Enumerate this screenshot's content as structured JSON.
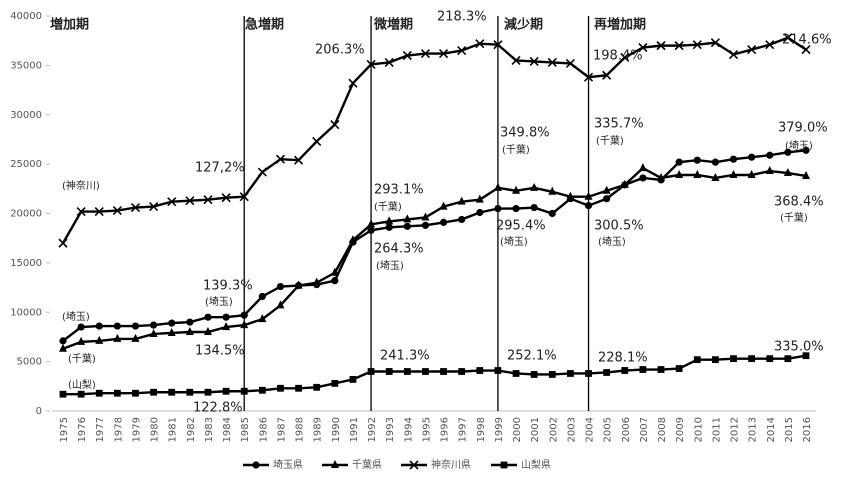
{
  "chart_data": {
    "type": "line",
    "categories": [
      "1975",
      "1976",
      "1977",
      "1978",
      "1979",
      "1980",
      "1981",
      "1982",
      "1983",
      "1984",
      "1985",
      "1986",
      "1987",
      "1988",
      "1989",
      "1990",
      "1991",
      "1992",
      "1993",
      "1994",
      "1995",
      "1996",
      "1997",
      "1998",
      "1999",
      "2000",
      "2001",
      "2002",
      "2003",
      "2004",
      "2005",
      "2006",
      "2007",
      "2008",
      "2009",
      "2010",
      "2011",
      "2012",
      "2013",
      "2014",
      "2015",
      "2016"
    ],
    "ylim": [
      0,
      40000
    ],
    "yticks": [
      0,
      5000,
      10000,
      15000,
      20000,
      25000,
      30000,
      35000,
      40000
    ],
    "grid": false,
    "series": [
      {
        "name": "埼玉県",
        "color": "#000000",
        "marker": "circle",
        "values": [
          7100,
          8500,
          8600,
          8600,
          8600,
          8700,
          8900,
          9000,
          9500,
          9500,
          9700,
          11600,
          12600,
          12700,
          12800,
          13200,
          17100,
          18300,
          18600,
          18700,
          18800,
          19100,
          19400,
          20100,
          20500,
          20500,
          20600,
          20000,
          21500,
          20800,
          21500,
          22900,
          23600,
          23400,
          25200,
          25400,
          25200,
          25500,
          25700,
          25900,
          26200,
          26400
        ]
      },
      {
        "name": "千葉県",
        "color": "#000000",
        "marker": "triangle",
        "values": [
          6300,
          7000,
          7100,
          7300,
          7300,
          7800,
          7900,
          8000,
          8000,
          8500,
          8700,
          9300,
          10700,
          12700,
          13000,
          14000,
          17300,
          18900,
          19200,
          19400,
          19600,
          20700,
          21200,
          21400,
          22600,
          22300,
          22600,
          22200,
          21700,
          21700,
          22300,
          22900,
          24600,
          23600,
          23900,
          23900,
          23600,
          23900,
          23900,
          24300,
          24100,
          23800
        ]
      },
      {
        "name": "神奈川県",
        "color": "#000000",
        "marker": "x",
        "values": [
          17000,
          20200,
          20200,
          20300,
          20600,
          20700,
          21200,
          21300,
          21400,
          21600,
          21700,
          24200,
          25500,
          25400,
          27300,
          29000,
          33200,
          35100,
          35300,
          36000,
          36200,
          36200,
          36500,
          37200,
          37100,
          35500,
          35400,
          35300,
          35200,
          33800,
          34000,
          35800,
          36800,
          37000,
          37000,
          37100,
          37300,
          36100,
          36600,
          37100,
          37800,
          36600
        ]
      },
      {
        "name": "山梨県",
        "color": "#000000",
        "marker": "square",
        "values": [
          1700,
          1700,
          1800,
          1800,
          1800,
          1900,
          1900,
          1900,
          1900,
          2000,
          2000,
          2100,
          2300,
          2300,
          2400,
          2800,
          3200,
          4000,
          4000,
          4000,
          4000,
          4000,
          4000,
          4100,
          4100,
          3800,
          3700,
          3700,
          3800,
          3800,
          3900,
          4100,
          4200,
          4200,
          4300,
          5200,
          5200,
          5300,
          5300,
          5300,
          5300,
          5600
        ]
      }
    ],
    "periods": [
      {
        "label": "増加期",
        "start": "1975"
      },
      {
        "label": "急増期",
        "start": "1985"
      },
      {
        "label": "微増期",
        "start": "1992"
      },
      {
        "label": "減少期",
        "start": "1999"
      },
      {
        "label": "再増加期",
        "start": "2004"
      }
    ],
    "annotations": [
      "127,2%",
      "206.3%",
      "218.3%",
      "198.4%",
      "214.6%",
      "(神奈川)",
      "379.0%",
      "(埼玉)",
      "335.7%",
      "(千葉)",
      "349.8%",
      "(千葉)",
      "293.1%",
      "(千葉)",
      "264.3%",
      "(埼玉)",
      "295.4%",
      "(埼玉)",
      "300.5%",
      "(埼玉)",
      "368.4%",
      "(千葉)",
      "139.3%",
      "(埼玉)",
      "(埼玉)",
      "134.5%",
      "(千葉)",
      "(山梨)",
      "122.8%",
      "241.3%",
      "252.1%",
      "228.1%",
      "335.0%"
    ]
  }
}
